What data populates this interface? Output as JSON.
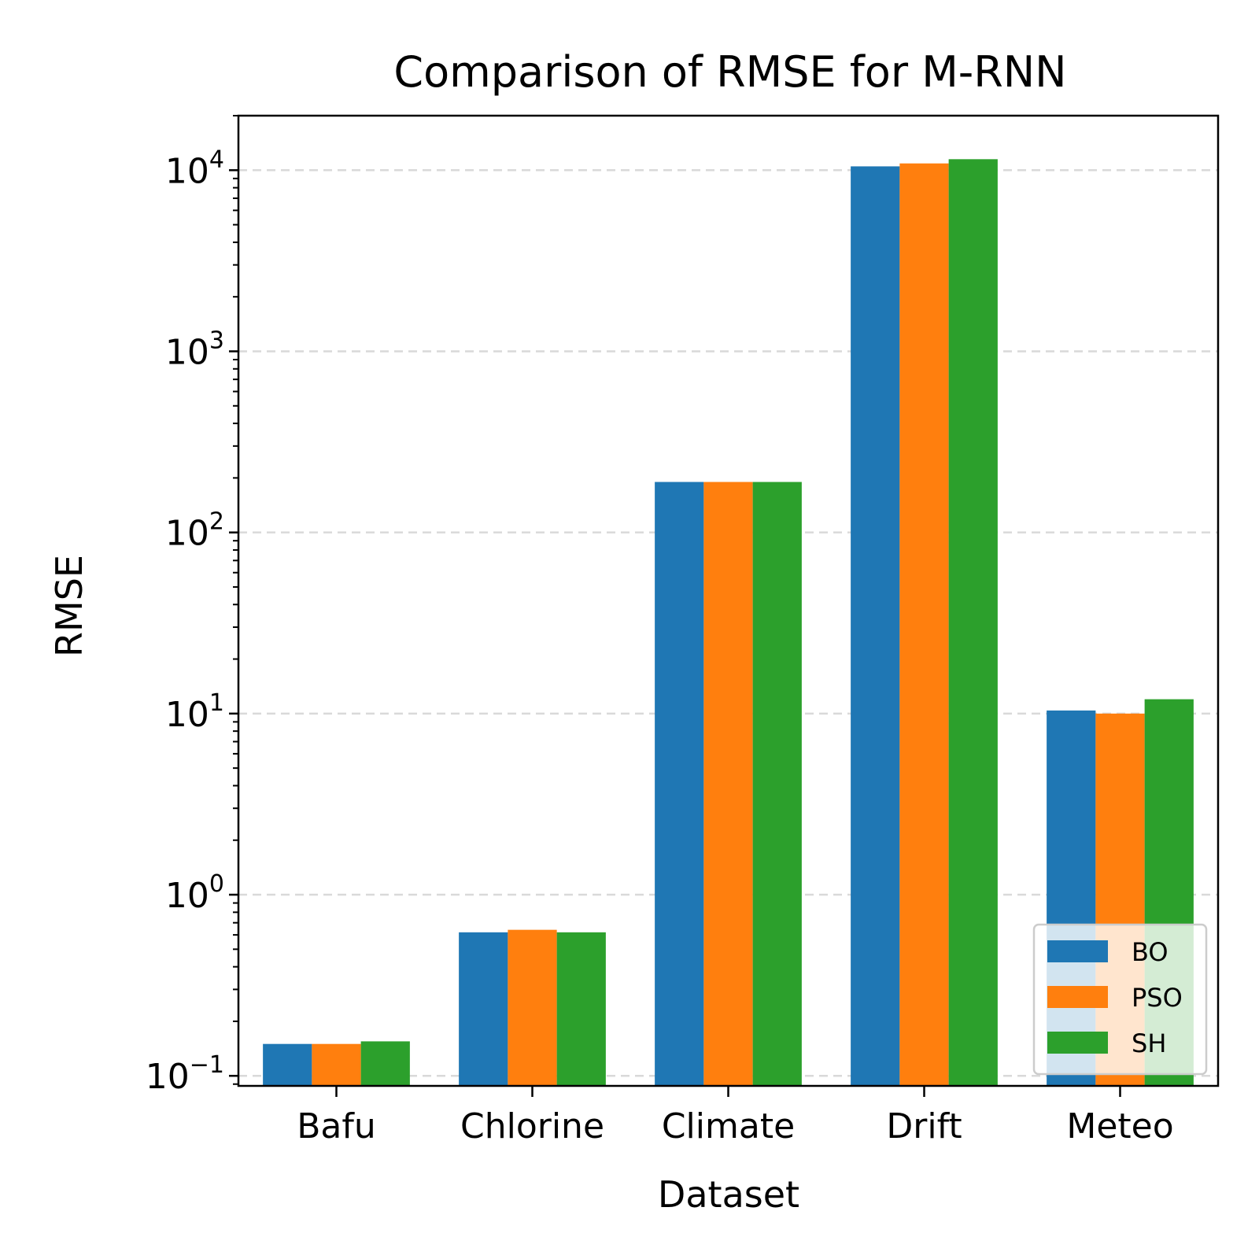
{
  "chart_data": {
    "type": "bar",
    "title": "Comparison of RMSE for M-RNN",
    "xlabel": "Dataset",
    "ylabel": "RMSE",
    "yscale": "log",
    "ylim": [
      0.088,
      20000
    ],
    "yticks": [
      {
        "base": "10",
        "exp": "−1",
        "value": 0.1
      },
      {
        "base": "10",
        "exp": "0",
        "value": 1
      },
      {
        "base": "10",
        "exp": "1",
        "value": 10
      },
      {
        "base": "10",
        "exp": "2",
        "value": 100
      },
      {
        "base": "10",
        "exp": "3",
        "value": 1000
      },
      {
        "base": "10",
        "exp": "4",
        "value": 10000
      }
    ],
    "categories": [
      "Bafu",
      "Chlorine",
      "Climate",
      "Drift",
      "Meteo"
    ],
    "series": [
      {
        "name": "BO",
        "color": "#1f77b4",
        "values": [
          0.15,
          0.62,
          190,
          10500,
          10.4
        ]
      },
      {
        "name": "PSO",
        "color": "#ff7f0e",
        "values": [
          0.15,
          0.64,
          190,
          10900,
          10.0
        ]
      },
      {
        "name": "SH",
        "color": "#2ca02c",
        "values": [
          0.155,
          0.62,
          190,
          11500,
          12.0
        ]
      }
    ],
    "grid": {
      "axis": "y",
      "style": "dashed",
      "color": "#d9d9d9"
    },
    "legend_position": "lower right"
  }
}
